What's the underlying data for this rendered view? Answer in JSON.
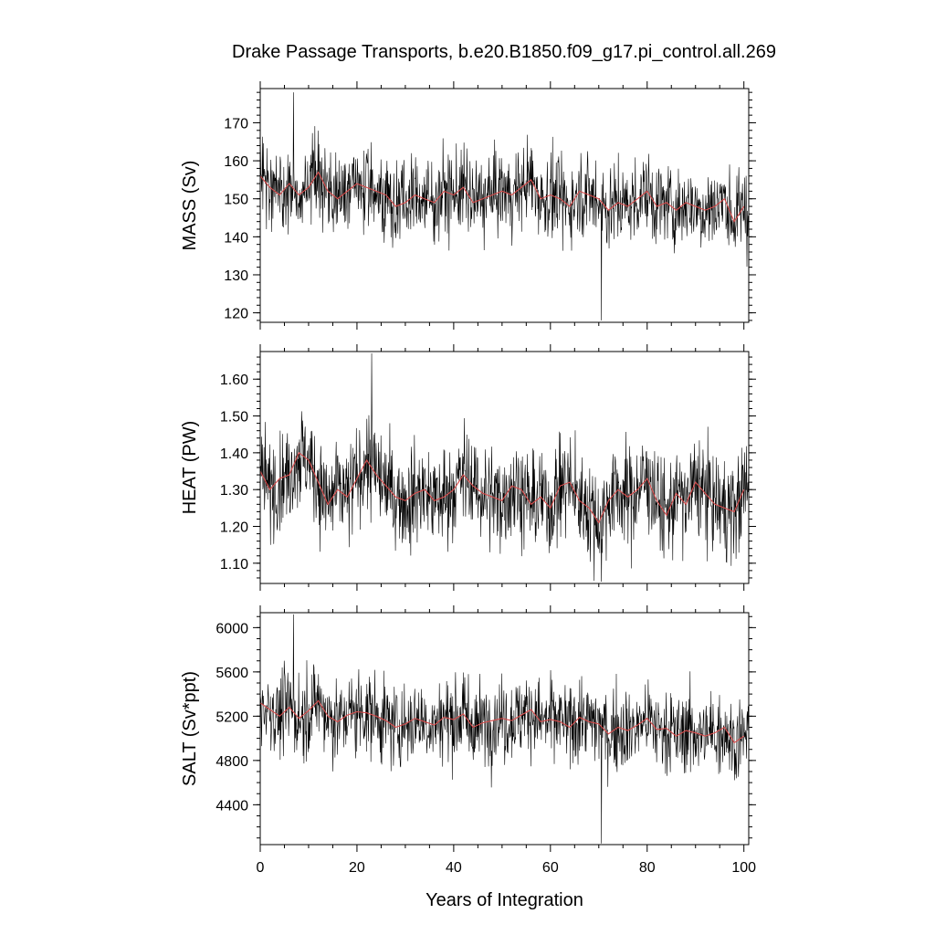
{
  "title": "Drake Passage Transports, b.e20.B1850.f09_g17.pi_control.all.269",
  "xlabel": "Years of Integration",
  "colors": {
    "raw_series": "#000000",
    "smoothed_series": "#d94c4c",
    "frame": "#000000"
  },
  "chart_data": {
    "type": "line",
    "shared_x": {
      "xlim": [
        0,
        101
      ],
      "ticks": [
        0,
        20,
        40,
        60,
        80,
        100
      ],
      "minor_step": 5
    },
    "panels": [
      {
        "id": "mass",
        "ylabel": "MASS (Sv)",
        "ylim": [
          117.5,
          179
        ],
        "yticks": [
          120,
          130,
          140,
          150,
          160,
          170
        ],
        "ytick_labels": [
          "120",
          "130",
          "140",
          "150",
          "160",
          "170"
        ],
        "minor_step": 2,
        "raw": {
          "mean": 151,
          "spread": 8,
          "min_point": [
            70.5,
            118
          ],
          "max_point": [
            6.8,
            178
          ]
        },
        "smoothed": {
          "x": [
            0,
            2,
            4,
            6,
            8,
            10,
            12,
            14,
            16,
            18,
            20,
            22,
            24,
            26,
            28,
            30,
            32,
            34,
            36,
            38,
            40,
            42,
            44,
            46,
            48,
            50,
            52,
            54,
            56,
            58,
            60,
            62,
            64,
            66,
            68,
            70,
            72,
            74,
            76,
            78,
            80,
            82,
            84,
            86,
            88,
            90,
            92,
            94,
            96,
            98,
            100
          ],
          "y": [
            156,
            153,
            151,
            154,
            151,
            153,
            157,
            152,
            150,
            152,
            154,
            153,
            152,
            151,
            148,
            149,
            151,
            150,
            149,
            152,
            151,
            153,
            149,
            150,
            151,
            152,
            151,
            153,
            155,
            150,
            151,
            150,
            148,
            152,
            151,
            150,
            147,
            149,
            148,
            150,
            152,
            148,
            149,
            147,
            149,
            148,
            147,
            148,
            150,
            144,
            148
          ]
        }
      },
      {
        "id": "heat",
        "ylabel": "HEAT (PW)",
        "ylim": [
          1.045,
          1.675
        ],
        "yticks": [
          1.1,
          1.2,
          1.3,
          1.4,
          1.5,
          1.6
        ],
        "ytick_labels": [
          "1.10",
          "1.20",
          "1.30",
          "1.40",
          "1.50",
          "1.60"
        ],
        "minor_step": 0.02,
        "raw": {
          "mean": 1.3,
          "spread": 0.1,
          "min_point": [
            70.5,
            1.05
          ],
          "max_point": [
            23,
            1.67
          ]
        },
        "smoothed": {
          "x": [
            0,
            2,
            4,
            6,
            8,
            10,
            12,
            14,
            16,
            18,
            20,
            22,
            24,
            26,
            28,
            30,
            32,
            34,
            36,
            38,
            40,
            42,
            44,
            46,
            48,
            50,
            52,
            54,
            56,
            58,
            60,
            62,
            64,
            66,
            68,
            70,
            72,
            74,
            76,
            78,
            80,
            82,
            84,
            86,
            88,
            90,
            92,
            94,
            96,
            98,
            100
          ],
          "y": [
            1.35,
            1.3,
            1.33,
            1.34,
            1.4,
            1.38,
            1.32,
            1.26,
            1.3,
            1.28,
            1.33,
            1.38,
            1.34,
            1.31,
            1.28,
            1.27,
            1.29,
            1.3,
            1.27,
            1.28,
            1.3,
            1.34,
            1.31,
            1.29,
            1.28,
            1.27,
            1.31,
            1.3,
            1.26,
            1.28,
            1.25,
            1.31,
            1.32,
            1.27,
            1.25,
            1.21,
            1.27,
            1.3,
            1.28,
            1.3,
            1.33,
            1.27,
            1.23,
            1.29,
            1.26,
            1.32,
            1.29,
            1.26,
            1.25,
            1.24,
            1.3
          ]
        }
      },
      {
        "id": "salt",
        "ylabel": "SALT (Sv*ppt)",
        "ylim": [
          4040,
          6135
        ],
        "yticks": [
          4400,
          4800,
          5200,
          5600,
          6000
        ],
        "ytick_labels": [
          "4400",
          "4800",
          "5200",
          "5600",
          "6000"
        ],
        "minor_step": 100,
        "raw": {
          "mean": 5150,
          "spread": 280,
          "min_point": [
            70.5,
            4050
          ],
          "max_point": [
            6.8,
            6120
          ]
        },
        "smoothed": {
          "x": [
            0,
            2,
            4,
            6,
            8,
            10,
            12,
            14,
            16,
            18,
            20,
            22,
            24,
            26,
            28,
            30,
            32,
            34,
            36,
            38,
            40,
            42,
            44,
            46,
            48,
            50,
            52,
            54,
            56,
            58,
            60,
            62,
            64,
            66,
            68,
            70,
            72,
            74,
            76,
            78,
            80,
            82,
            84,
            86,
            88,
            90,
            92,
            94,
            96,
            98,
            100
          ],
          "y": [
            5320,
            5260,
            5200,
            5280,
            5180,
            5250,
            5340,
            5200,
            5150,
            5210,
            5240,
            5230,
            5200,
            5160,
            5100,
            5130,
            5180,
            5150,
            5120,
            5190,
            5170,
            5220,
            5100,
            5140,
            5160,
            5180,
            5160,
            5210,
            5260,
            5150,
            5170,
            5150,
            5100,
            5190,
            5150,
            5130,
            5040,
            5100,
            5070,
            5120,
            5180,
            5080,
            5090,
            5020,
            5070,
            5050,
            5020,
            5050,
            5100,
            4960,
            5020
          ]
        }
      }
    ]
  }
}
